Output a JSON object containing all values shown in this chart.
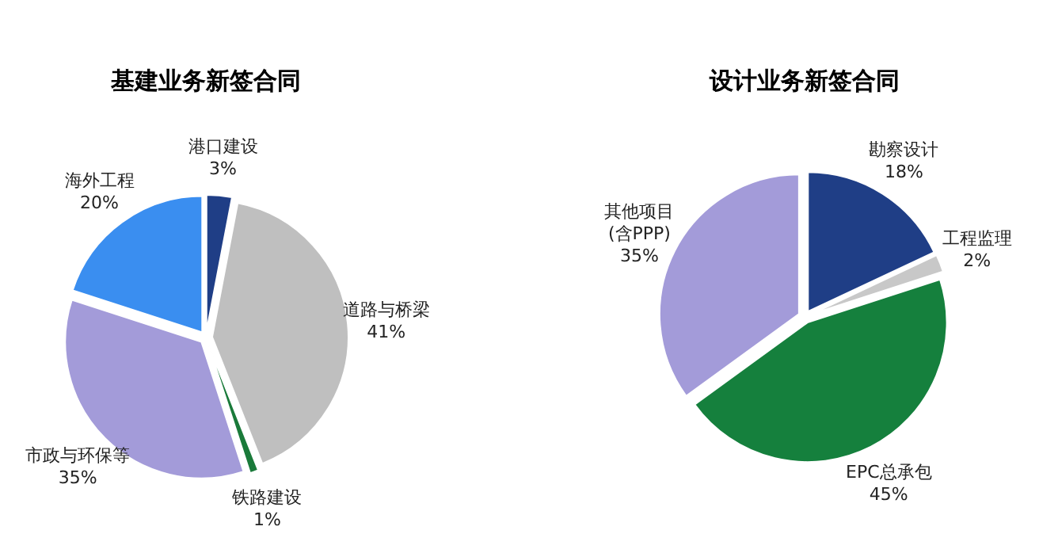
{
  "chart_data": [
    {
      "type": "pie",
      "title": "基建业务新签合同",
      "categories": [
        "港口建设",
        "道路与桥梁",
        "铁路建设",
        "市政与环保等",
        "海外工程"
      ],
      "values": [
        3,
        41,
        1,
        35,
        20
      ],
      "colors": [
        "#1f3e86",
        "#bfbfbf",
        "#1a7a3a",
        "#a39bd9",
        "#3a8ef0"
      ],
      "value_labels": [
        "3%",
        "41%",
        "1%",
        "35%",
        "20%"
      ]
    },
    {
      "type": "pie",
      "title": "设计业务新签合同",
      "categories": [
        "勘察设计",
        "工程监理",
        "EPC总承包",
        "其他项目\n(含PPP)"
      ],
      "values": [
        18,
        2,
        45,
        35
      ],
      "colors": [
        "#1f3e86",
        "#c8c8c8",
        "#15803d",
        "#a39bd9"
      ],
      "value_labels": [
        "18%",
        "2%",
        "45%",
        "35%"
      ]
    }
  ]
}
